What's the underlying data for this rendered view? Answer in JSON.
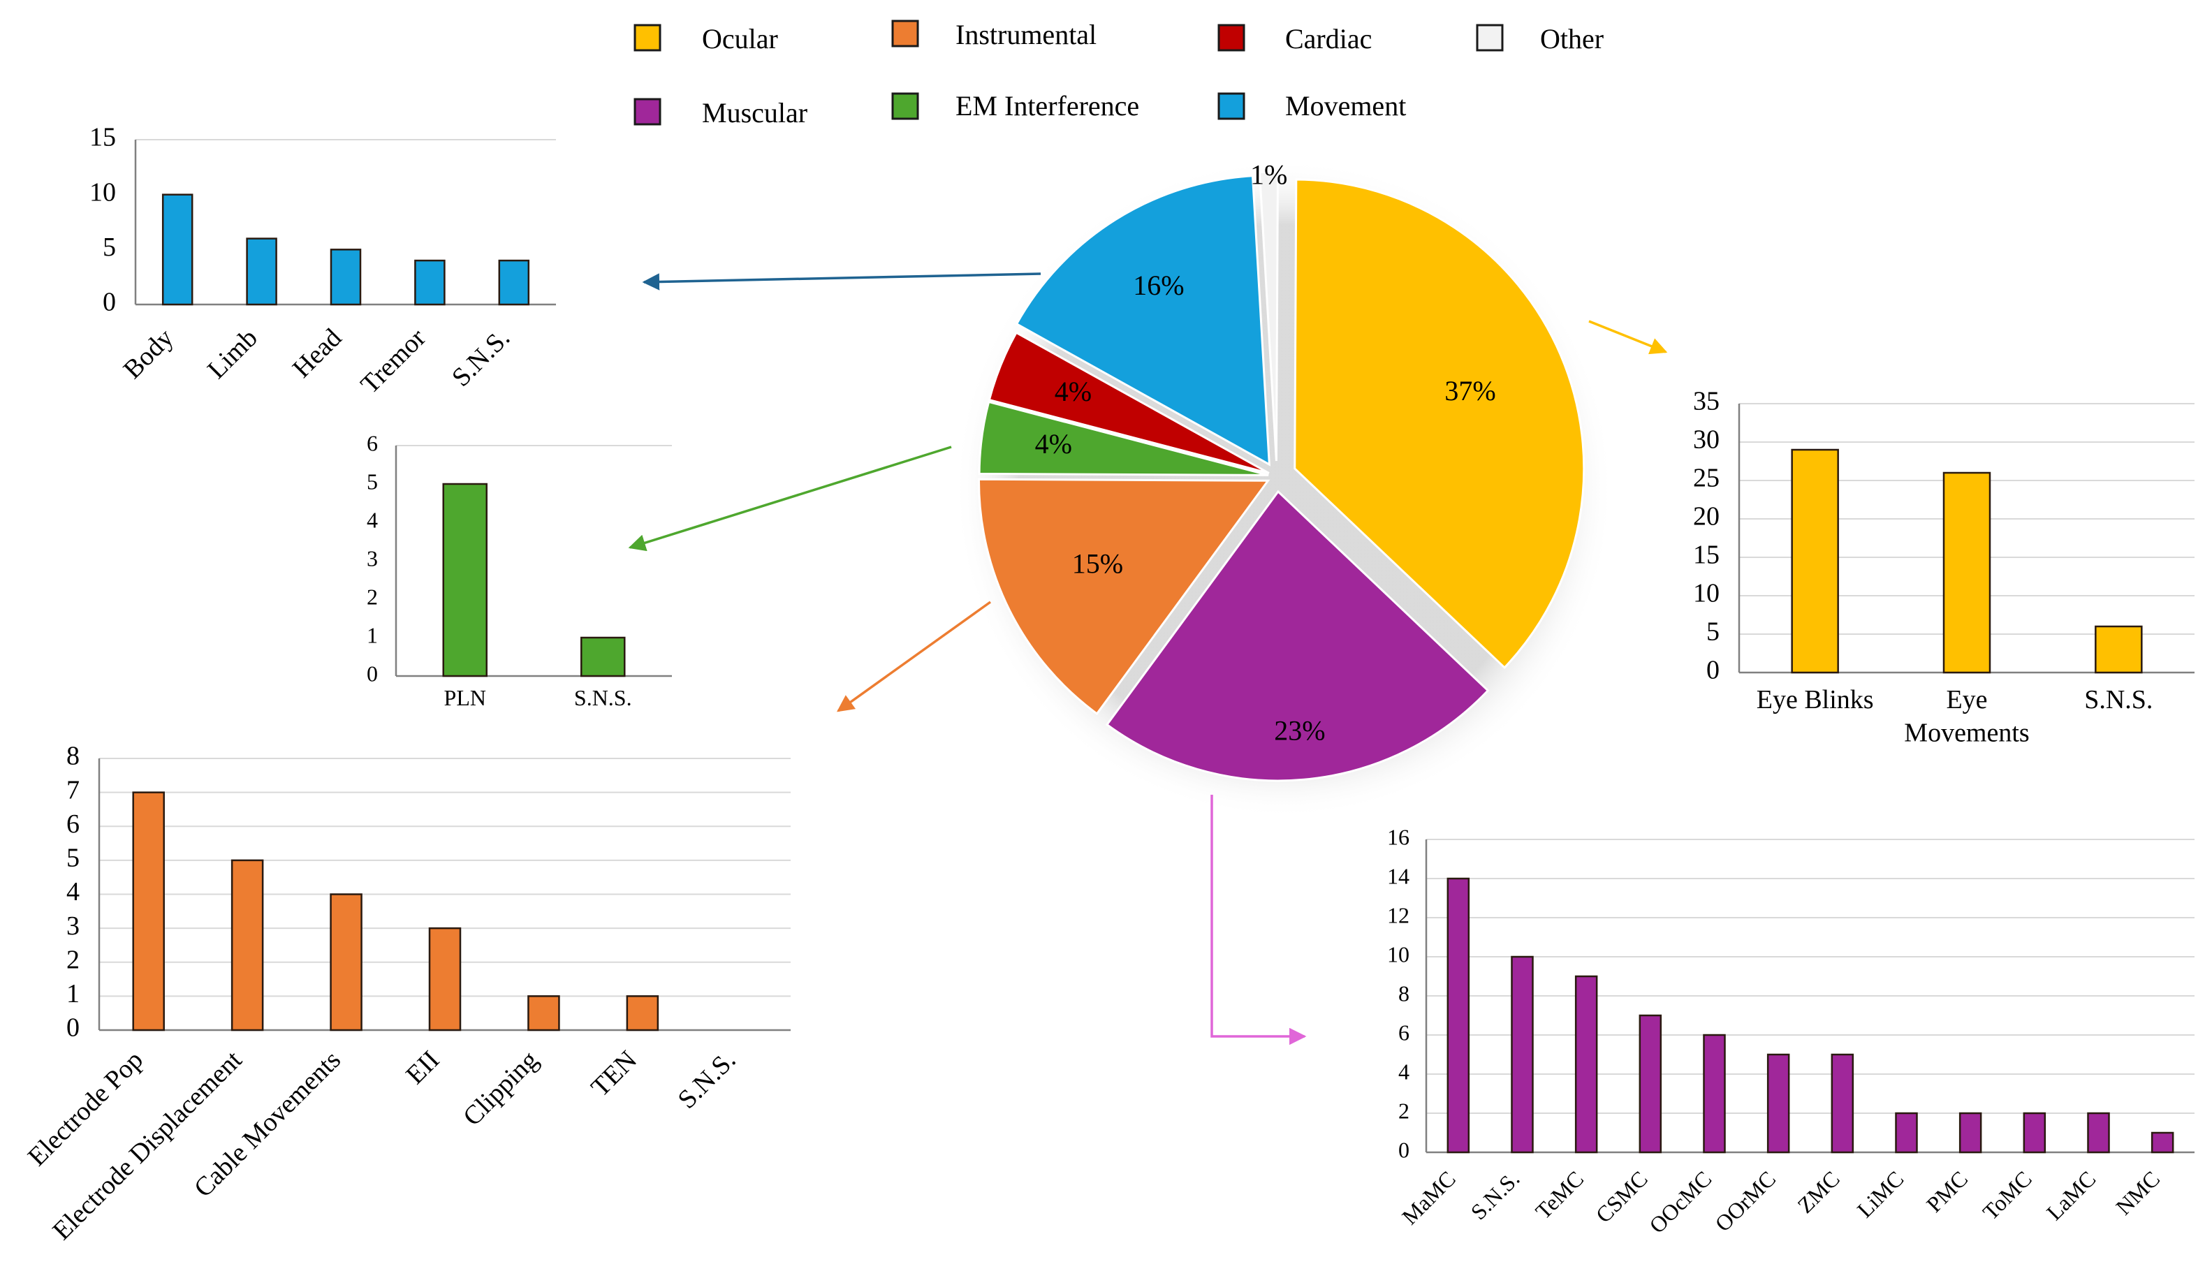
{
  "colors": {
    "ocular": "#FFC000",
    "instrumental": "#ED7D31",
    "cardiac": "#C00000",
    "other": "#F2F2F2",
    "muscular": "#A0279A",
    "em_interference": "#4EA72E",
    "movement": "#14A0DC",
    "grid": "#D9D9D9",
    "axis": "#808080"
  },
  "legend": [
    {
      "key": "ocular",
      "label": "Ocular",
      "icon": "square-swatch"
    },
    {
      "key": "instrumental",
      "label": "Instrumental",
      "icon": "square-swatch"
    },
    {
      "key": "cardiac",
      "label": "Cardiac",
      "icon": "square-swatch"
    },
    {
      "key": "other",
      "label": "Other",
      "icon": "square-swatch"
    },
    {
      "key": "muscular",
      "label": "Muscular",
      "icon": "square-swatch"
    },
    {
      "key": "em_interference",
      "label": "EM Interference",
      "icon": "square-swatch"
    },
    {
      "key": "movement",
      "label": "Movement",
      "icon": "square-swatch"
    }
  ],
  "chart_data": [
    {
      "id": "pie",
      "type": "pie",
      "title": "",
      "slices": [
        {
          "key": "ocular",
          "name": "Ocular",
          "value": 37,
          "label": "37%"
        },
        {
          "key": "muscular",
          "name": "Muscular",
          "value": 23,
          "label": "23%"
        },
        {
          "key": "instrumental",
          "name": "Instrumental",
          "value": 15,
          "label": "15%"
        },
        {
          "key": "em_interference",
          "name": "EM Interference",
          "value": 4,
          "label": "4%"
        },
        {
          "key": "cardiac",
          "name": "Cardiac",
          "value": 4,
          "label": "4%"
        },
        {
          "key": "movement",
          "name": "Movement",
          "value": 16,
          "label": "16%"
        },
        {
          "key": "other",
          "name": "Other",
          "value": 1,
          "label": "1%"
        }
      ]
    },
    {
      "id": "movement",
      "type": "bar",
      "color_key": "movement",
      "categories": [
        "Body",
        "Limb",
        "Head",
        "Tremor",
        "S.N.S."
      ],
      "values": [
        10,
        6,
        5,
        4,
        4
      ],
      "ylim": [
        0,
        15
      ],
      "yticks": [
        0,
        5,
        10,
        15
      ],
      "xlabel_rotation": -45,
      "grid": false
    },
    {
      "id": "em",
      "type": "bar",
      "color_key": "em_interference",
      "categories": [
        "PLN",
        "S.N.S."
      ],
      "values": [
        5,
        1
      ],
      "ylim": [
        0,
        6
      ],
      "yticks": [
        0,
        1,
        2,
        3,
        4,
        5,
        6
      ],
      "xlabel_rotation": 0,
      "grid": false
    },
    {
      "id": "instrumental",
      "type": "bar",
      "color_key": "instrumental",
      "categories": [
        "Electrode Pop",
        "Electrode Displacement",
        "Cable Movements",
        "EII",
        "Clipping",
        "TEN",
        "S.N.S."
      ],
      "values": [
        7,
        5,
        4,
        3,
        1,
        1,
        0
      ],
      "ylim": [
        0,
        8
      ],
      "yticks": [
        0,
        1,
        2,
        3,
        4,
        5,
        6,
        7,
        8
      ],
      "xlabel_rotation": -45,
      "grid": true
    },
    {
      "id": "ocular",
      "type": "bar",
      "color_key": "ocular",
      "categories": [
        "Eye Blinks",
        "Eye\nMovements",
        "S.N.S."
      ],
      "values": [
        29,
        26,
        6
      ],
      "ylim": [
        0,
        35
      ],
      "yticks": [
        0,
        5,
        10,
        15,
        20,
        25,
        30,
        35
      ],
      "xlabel_rotation": 0,
      "grid": true
    },
    {
      "id": "muscular",
      "type": "bar",
      "color_key": "muscular",
      "categories": [
        "MaMC",
        "S.N.S.",
        "TeMC",
        "CSMC",
        "OOcMC",
        "OOrMC",
        "ZMC",
        "LiMC",
        "PMC",
        "ToMC",
        "LaMC",
        "NMC"
      ],
      "values": [
        14,
        10,
        9,
        7,
        6,
        5,
        5,
        2,
        2,
        2,
        2,
        1
      ],
      "ylim": [
        0,
        16
      ],
      "yticks": [
        0,
        2,
        4,
        6,
        8,
        10,
        12,
        14,
        16
      ],
      "xlabel_rotation": -45,
      "grid": true
    }
  ]
}
